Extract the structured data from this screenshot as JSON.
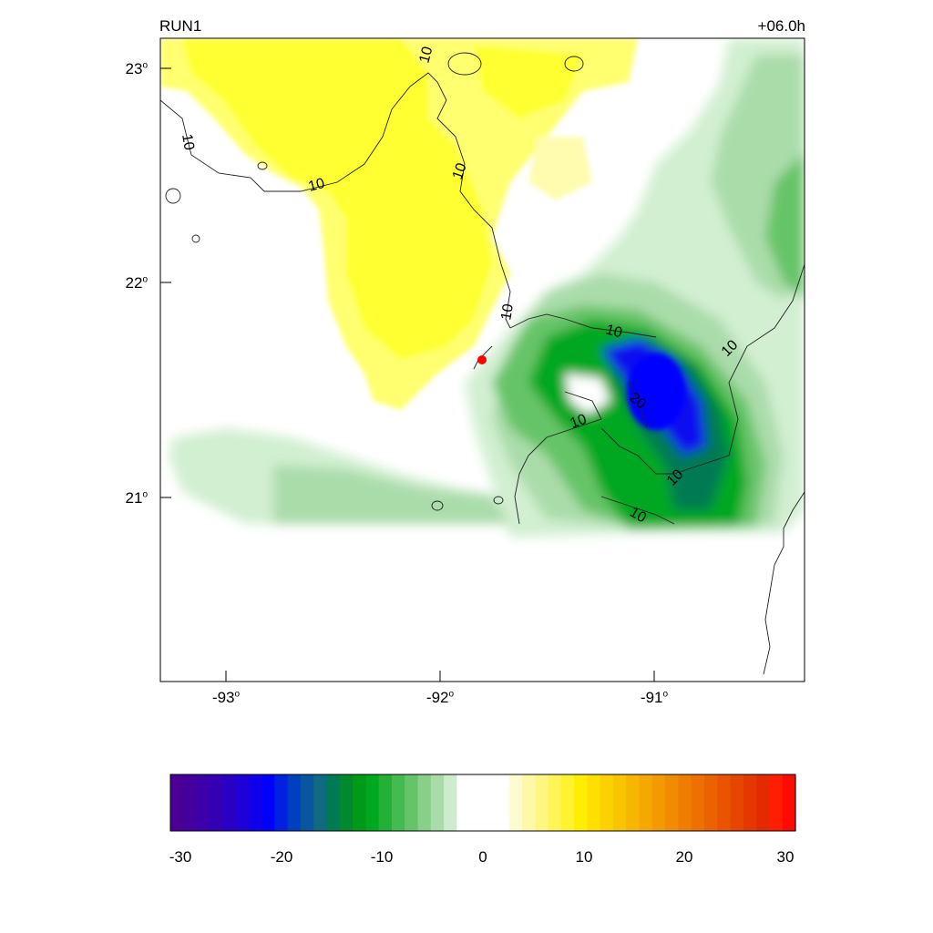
{
  "header": {
    "run": "RUN1",
    "lead_time": "+06.0h"
  },
  "lat_ticks": [
    {
      "value": "23",
      "deg": "o"
    },
    {
      "value": "22",
      "deg": "o"
    },
    {
      "value": "21",
      "deg": "o"
    }
  ],
  "lon_ticks": [
    {
      "value": "-93",
      "deg": "o"
    },
    {
      "value": "-92",
      "deg": "o"
    },
    {
      "value": "-91",
      "deg": "o"
    }
  ],
  "contour_labels": [
    "10",
    "10",
    "10",
    "10",
    "10",
    "10",
    "10",
    "10",
    "20",
    "10",
    "10"
  ],
  "colorbar": {
    "labels": [
      "-30",
      "-20",
      "-10",
      "0",
      "10",
      "20",
      "30"
    ],
    "min": -30,
    "max": 30,
    "colors": [
      "#4b0095",
      "#44009e",
      "#3c00a8",
      "#3300b4",
      "#2a00c4",
      "#1f00d6",
      "#1000ea",
      "#0000ff",
      "#0022e0",
      "#0040c0",
      "#0a55a0",
      "#0f6a82",
      "#007a52",
      "#008a2c",
      "#009a18",
      "#00a820",
      "#22b038",
      "#44bb50",
      "#66c468",
      "#88d088",
      "#aadcaa",
      "#cceccc",
      "#ffffff",
      "#ffffff",
      "#ffffff",
      "#ffffff",
      "#fffbd0",
      "#fff8a8",
      "#fff680",
      "#fff458",
      "#fff230",
      "#ffee00",
      "#fde000",
      "#fbd200",
      "#f9c400",
      "#f7b600",
      "#f5a800",
      "#f39a00",
      "#f18c00",
      "#ef7e00",
      "#ed7000",
      "#eb6200",
      "#e95400",
      "#e74600",
      "#e53800",
      "#e32a00",
      "#ff1e00",
      "#ff0a00"
    ]
  },
  "site_marker": {
    "color": "#ff0000"
  }
}
